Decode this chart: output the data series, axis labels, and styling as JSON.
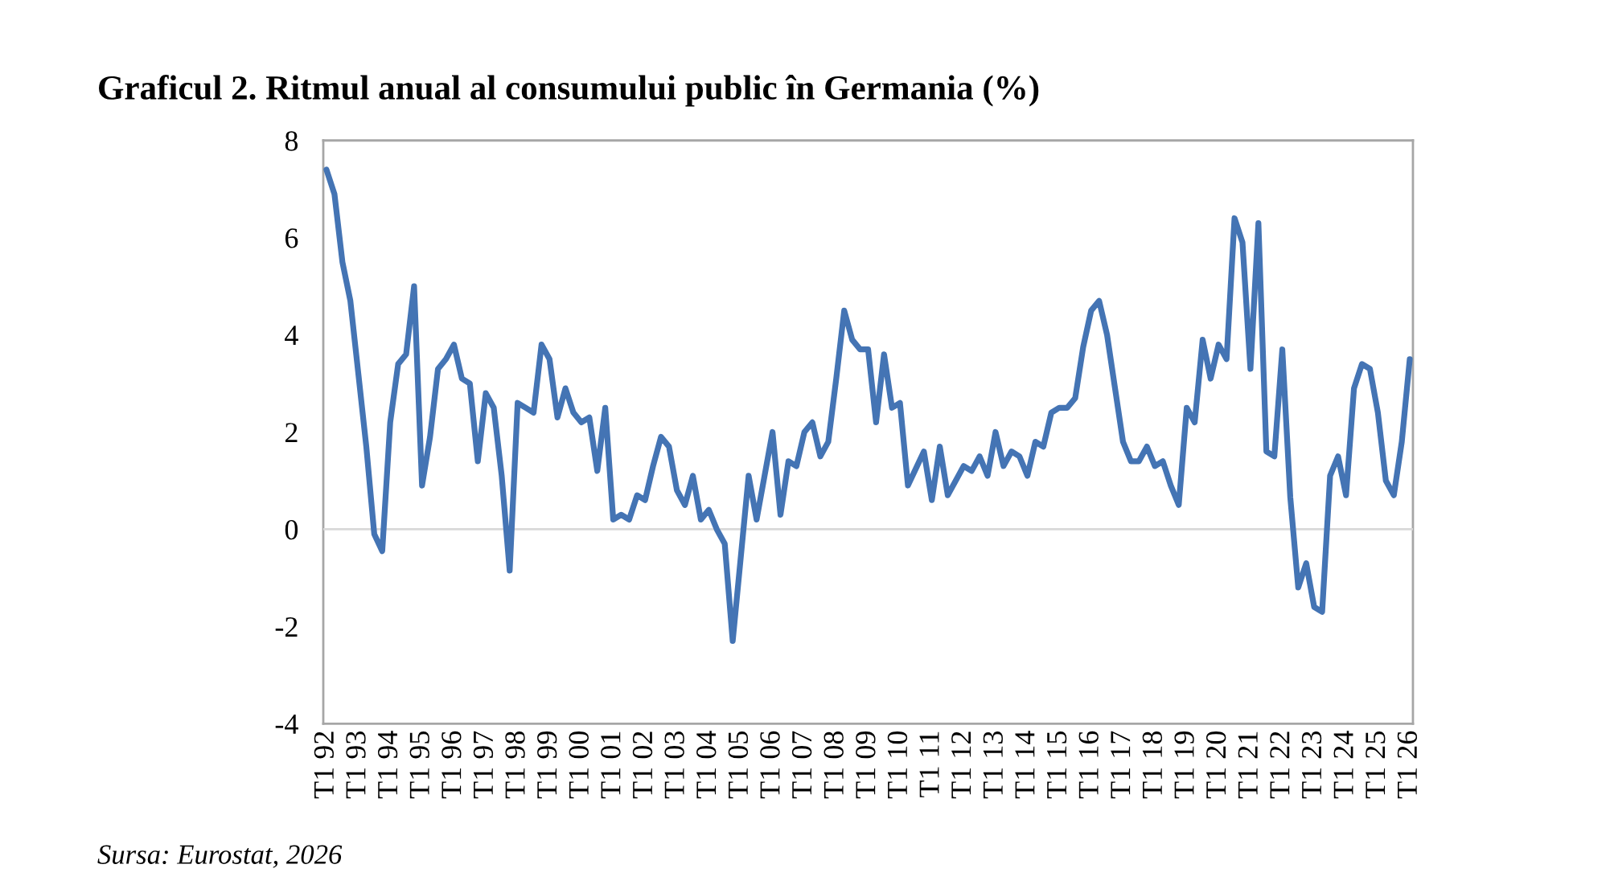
{
  "chart_data": {
    "type": "line",
    "title": "Graficul 2. Ritmul anual al consumului public în Germania (%)",
    "annotations": [
      "Sursa: Eurostat, 2026"
    ],
    "categories": [
      "T1 92",
      null,
      null,
      null,
      "T1 93",
      null,
      null,
      null,
      "T1 94",
      null,
      null,
      null,
      "T1 95",
      null,
      null,
      null,
      "T1 96",
      null,
      null,
      null,
      "T1 97",
      null,
      null,
      null,
      "T1 98",
      null,
      null,
      null,
      "T1 99",
      null,
      null,
      null,
      "T1 00",
      null,
      null,
      null,
      "T1 01",
      null,
      null,
      null,
      "T1 02",
      null,
      null,
      null,
      "T1 03",
      null,
      null,
      null,
      "T1 04",
      null,
      null,
      null,
      "T1 05",
      null,
      null,
      null,
      "T1 06",
      null,
      null,
      null,
      "T1 07",
      null,
      null,
      null,
      "T1 08",
      null,
      null,
      null,
      "T1 09",
      null,
      null,
      null,
      "T1 10",
      null,
      null,
      null,
      "T1 11",
      null,
      null,
      null,
      "T1 12",
      null,
      null,
      null,
      "T1 13",
      null,
      null,
      null,
      "T1 14",
      null,
      null,
      null,
      "T1 15",
      null,
      null,
      null,
      "T1 16",
      null,
      null,
      null,
      "T1 17",
      null,
      null,
      null,
      "T1 18",
      null,
      null,
      null,
      "T1 19",
      null,
      null,
      null,
      "T1 20",
      null,
      null,
      null,
      "T1 21",
      null,
      null,
      null,
      "T1 22",
      null,
      null,
      null,
      "T1 23",
      null,
      null,
      null,
      "T1 24",
      null,
      null,
      null,
      "T1 25",
      null,
      null,
      null,
      "T1 26"
    ],
    "series": [
      {
        "color": "#4474b4",
        "values": [
          7.4,
          6.9,
          5.5,
          4.7,
          3.2,
          1.7,
          -0.1,
          -0.45,
          2.2,
          3.4,
          3.6,
          5.0,
          0.9,
          1.9,
          3.3,
          3.5,
          3.8,
          3.1,
          3.0,
          1.4,
          2.8,
          2.5,
          1.1,
          -0.85,
          2.6,
          2.5,
          2.4,
          3.8,
          3.5,
          2.3,
          2.9,
          2.4,
          2.2,
          2.3,
          1.2,
          2.5,
          0.2,
          0.3,
          0.2,
          0.7,
          0.6,
          1.3,
          1.9,
          1.7,
          0.8,
          0.5,
          1.1,
          0.2,
          0.4,
          0.0,
          -0.3,
          -2.3,
          -0.6,
          1.1,
          0.2,
          1.1,
          2.0,
          0.3,
          1.4,
          1.3,
          2.0,
          2.2,
          1.5,
          1.8,
          3.1,
          4.5,
          3.9,
          3.7,
          3.7,
          2.2,
          3.6,
          2.5,
          2.6,
          0.9,
          1.25,
          1.6,
          0.6,
          1.7,
          0.7,
          1.0,
          1.3,
          1.2,
          1.5,
          1.1,
          2.0,
          1.3,
          1.6,
          1.5,
          1.1,
          1.8,
          1.7,
          2.4,
          2.5,
          2.5,
          2.7,
          3.75,
          4.5,
          4.7,
          4.0,
          2.9,
          1.8,
          1.4,
          1.4,
          1.7,
          1.3,
          1.4,
          0.9,
          0.5,
          2.5,
          2.2,
          3.9,
          3.1,
          3.8,
          3.5,
          6.4,
          5.9,
          3.3,
          6.3,
          1.6,
          1.5,
          3.7,
          0.66,
          -1.2,
          -0.7,
          -1.6,
          -1.7,
          1.1,
          1.5,
          0.7,
          2.9,
          3.4,
          3.3,
          2.4,
          1.0,
          0.7,
          1.8,
          3.5
        ]
      }
    ],
    "ref_lines": [
      {
        "axis": "y",
        "value": 0,
        "color": "#d9d9d9"
      }
    ],
    "ylim": [
      -4,
      8
    ],
    "yticks": [
      -4,
      -2,
      0,
      2,
      4,
      6,
      8
    ],
    "grid": false,
    "legend": false,
    "marker": "none",
    "line_style": "solid"
  }
}
